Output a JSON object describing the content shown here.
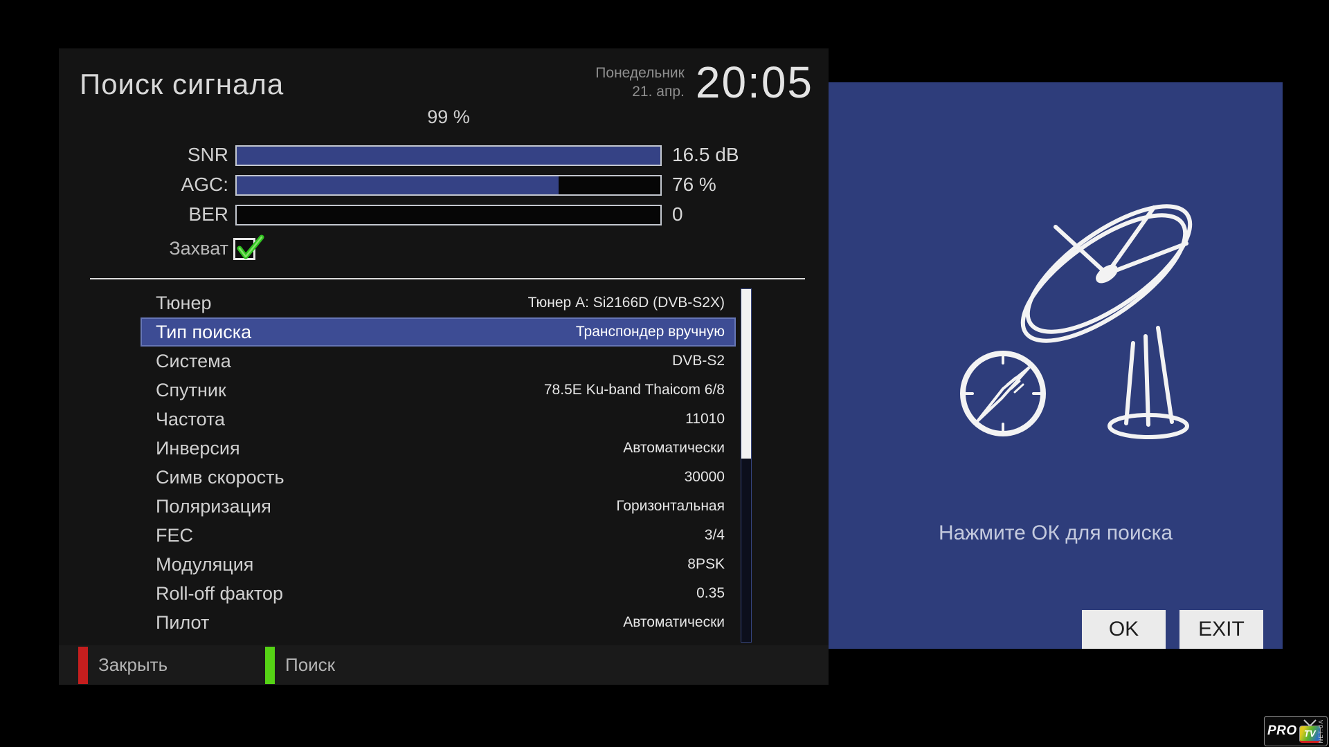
{
  "header": {
    "title": "Поиск сигнала",
    "day": "Понедельник",
    "date": "21. апр.",
    "time": "20:05"
  },
  "signal": {
    "quality": "99 %",
    "bars": [
      {
        "label": "SNR",
        "value": "16.5 dB",
        "fill_percent": 100
      },
      {
        "label": "AGC:",
        "value": "76 %",
        "fill_percent": 76
      },
      {
        "label": "BER",
        "value": "0",
        "fill_percent": 0
      }
    ],
    "lock": {
      "label": "Захват",
      "checked": true
    }
  },
  "settings": {
    "rows": [
      {
        "label": "Тюнер",
        "value": "Тюнер A: Si2166D (DVB-S2X)",
        "selected": false
      },
      {
        "label": "Тип поиска",
        "value": "Транспондер вручную",
        "selected": true
      },
      {
        "label": "Система",
        "value": "DVB-S2",
        "selected": false
      },
      {
        "label": "Спутник",
        "value": "78.5E Ku-band Thaicom 6/8",
        "selected": false
      },
      {
        "label": "Частота",
        "value": "11010",
        "selected": false
      },
      {
        "label": "Инверсия",
        "value": "Автоматически",
        "selected": false
      },
      {
        "label": "Симв скорость",
        "value": "30000",
        "selected": false
      },
      {
        "label": "Поляризация",
        "value": "Горизонтальная",
        "selected": false
      },
      {
        "label": "FEC",
        "value": "3/4",
        "selected": false
      },
      {
        "label": "Модуляция",
        "value": "8PSK",
        "selected": false
      },
      {
        "label": "Roll-off фактор",
        "value": "0.35",
        "selected": false
      },
      {
        "label": "Пилот",
        "value": "Автоматически",
        "selected": false
      }
    ]
  },
  "footer": {
    "hints": [
      {
        "label": "Закрыть",
        "color_key": "red"
      },
      {
        "label": "Поиск",
        "color_key": "green"
      }
    ]
  },
  "dialog": {
    "message": "Нажмите ОК для поиска",
    "buttons": [
      {
        "label": "OK"
      },
      {
        "label": "EXIT"
      }
    ]
  },
  "logo": {
    "pro": "PRO",
    "tv": "TV",
    "suffix": "NET.UA"
  },
  "colors": {
    "red": "#c41e1e",
    "green": "#55d215",
    "bar_fill": "#354285",
    "highlight": "#3d4c94",
    "highlight_border": "#6676b6",
    "panel_blue": "#2e3d7b",
    "check_green": "#2fc41f"
  }
}
